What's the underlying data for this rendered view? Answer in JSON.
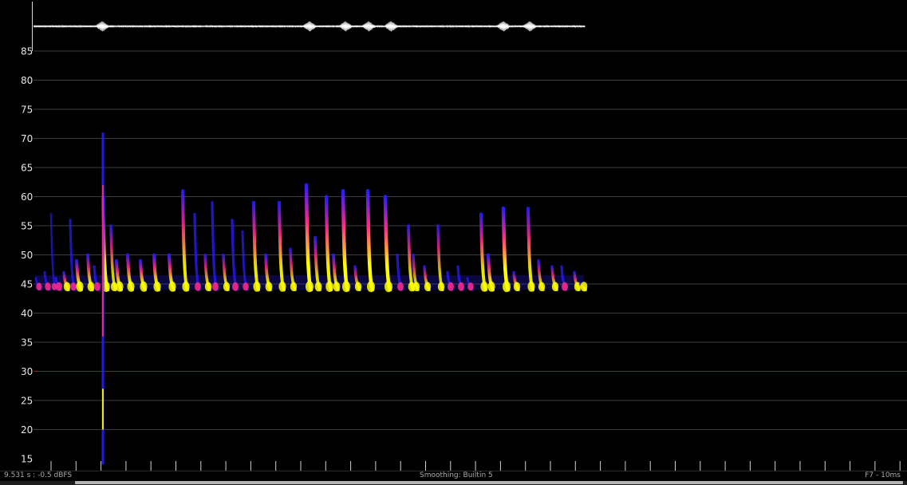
{
  "spectrogram": {
    "y_axis": {
      "ticks": [
        85,
        80,
        75,
        70,
        65,
        60,
        55,
        50,
        45,
        40,
        35,
        30,
        25,
        20,
        15
      ],
      "range": [
        13,
        88
      ],
      "highlight_tick": 30
    },
    "colors": {
      "background": "#000000",
      "gridline": "#3c3c3c",
      "highlight_line": "#8a1c1c",
      "tick_label": "#e6e6e6",
      "waveform": "#ffffff",
      "intensity_low": "#2a1aff",
      "intensity_mid": "#ff2a8a",
      "intensity_high": "#ffff00"
    }
  },
  "status": {
    "left": "9.531 s : -0.5 dBFS",
    "center": "Smoothing: Builtin 5",
    "right": "F7 - 10ms"
  }
}
